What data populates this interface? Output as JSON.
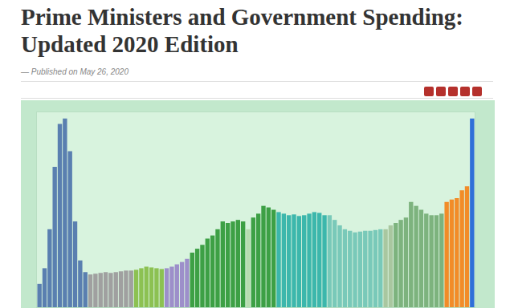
{
  "header": {
    "title": "Prime Ministers and Government Spending: Updated 2020 Edition",
    "published": "— Published on May 26, 2020"
  },
  "chart_data": {
    "type": "bar",
    "categories": [
      null,
      null,
      null,
      null,
      null,
      null,
      null,
      null,
      null,
      null,
      null,
      null,
      null,
      null,
      null,
      null,
      null,
      null,
      null,
      null,
      null,
      null,
      null,
      null,
      null,
      null,
      null,
      null,
      null,
      null,
      null,
      null,
      null,
      null,
      null,
      null,
      null,
      null,
      null,
      null,
      null,
      null,
      null,
      null,
      null,
      null,
      null,
      null,
      null,
      null,
      null,
      null,
      null,
      null,
      null,
      null,
      null,
      null,
      null,
      null,
      null,
      null,
      null,
      null,
      null,
      null,
      null,
      null,
      null,
      null,
      null,
      null,
      null,
      null,
      null,
      null,
      null,
      null,
      null,
      null,
      null,
      null,
      null,
      null,
      null,
      null
    ],
    "values": [
      30,
      50,
      100,
      180,
      235,
      242,
      200,
      110,
      60,
      45,
      42,
      43,
      44,
      45,
      44,
      45,
      46,
      47,
      47,
      48,
      50,
      52,
      51,
      50,
      49,
      50,
      52,
      55,
      58,
      62,
      70,
      75,
      80,
      88,
      92,
      100,
      110,
      108,
      110,
      112,
      110,
      100,
      115,
      120,
      130,
      128,
      125,
      122,
      120,
      118,
      119,
      117,
      118,
      120,
      122,
      121,
      118,
      118,
      112,
      105,
      100,
      98,
      96,
      97,
      98,
      98,
      99,
      100,
      100,
      105,
      108,
      112,
      115,
      135,
      130,
      125,
      120,
      118,
      118,
      120,
      135,
      138,
      140,
      150,
      155,
      242
    ],
    "colors": [
      "#5a7fb0",
      "#5a7fb0",
      "#5a7fb0",
      "#5a7fb0",
      "#5a7fb0",
      "#5a7fb0",
      "#5a7fb0",
      "#5a7fb0",
      "#5a7fb0",
      "#5a7fb0",
      "#a0a0a0",
      "#a0a0a0",
      "#a0a0a0",
      "#a0a0a0",
      "#a0a0a0",
      "#a0a0a0",
      "#a0a0a0",
      "#a0a0a0",
      "#a0a0a0",
      "#8cc152",
      "#8cc152",
      "#8cc152",
      "#8cc152",
      "#8cc152",
      "#8cc152",
      "#9d8fca",
      "#9d8fca",
      "#9d8fca",
      "#9d8fca",
      "#9d8fca",
      "#3da045",
      "#3da045",
      "#3da045",
      "#3da045",
      "#3da045",
      "#3da045",
      "#3da045",
      "#3da045",
      "#3da045",
      "#3da045",
      "#3da045",
      "#b7dcb0",
      "#3da045",
      "#3da045",
      "#3da045",
      "#3da045",
      "#3da045",
      "#3cb7ac",
      "#3cb7ac",
      "#3cb7ac",
      "#3cb7ac",
      "#3cb7ac",
      "#3cb7ac",
      "#3cb7ac",
      "#3cb7ac",
      "#3cb7ac",
      "#3cb7ac",
      "#79c9b9",
      "#79c9b9",
      "#79c9b9",
      "#79c9b9",
      "#79c9b9",
      "#79c9b9",
      "#79c9b9",
      "#79c9b9",
      "#79c9b9",
      "#79c9b9",
      "#79c9b9",
      "#a9c7a0",
      "#a9c7a0",
      "#7db37e",
      "#7db37e",
      "#7db37e",
      "#7db37e",
      "#7db37e",
      "#7db37e",
      "#7db37e",
      "#7db37e",
      "#7db37e",
      "#7db37e",
      "#f28c28",
      "#f28c28",
      "#f28c28",
      "#f28c28",
      "#f28c28",
      "#2f6fd8"
    ],
    "ylim": [
      0,
      250
    ],
    "grid": false,
    "tick_labels": false
  }
}
